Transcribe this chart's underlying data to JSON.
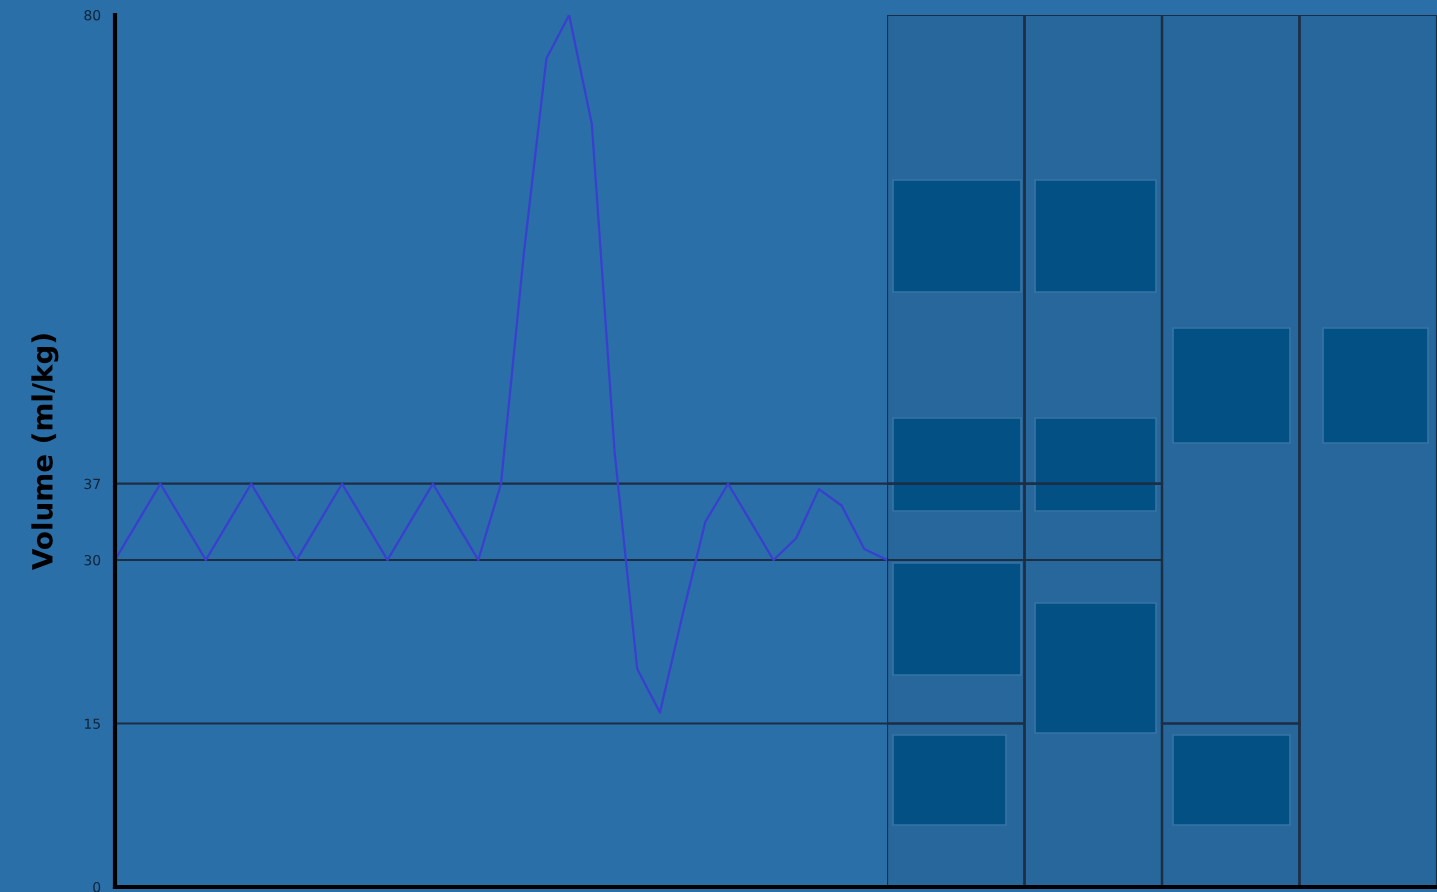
{
  "chart_data": [
    {
      "type": "line",
      "ylabel": "Volume (ml/kg)",
      "categories": [
        null,
        null,
        null,
        null,
        null,
        null,
        null,
        null,
        null,
        null,
        null,
        null,
        null,
        null,
        null,
        null,
        null,
        null,
        null,
        null,
        null,
        null,
        null,
        null,
        null,
        null,
        null,
        null,
        null,
        null,
        null,
        null,
        null,
        null,
        null
      ],
      "series": [
        {
          "color": "#3a3fd0",
          "values": [
            30,
            33.5,
            37,
            33.5,
            30,
            33.5,
            37,
            33.5,
            30,
            33.5,
            37,
            33.5,
            30,
            33.5,
            37,
            33.5,
            30,
            37,
            58,
            76,
            80,
            70,
            40,
            20,
            16,
            25,
            33.5,
            37,
            33.5,
            30,
            32,
            36.5,
            35,
            31,
            30
          ]
        }
      ],
      "ylim": [
        0,
        80
      ],
      "yticks": [
        0,
        15,
        30,
        37,
        80
      ],
      "tick_labels": "y",
      "grid": false,
      "legend": false,
      "ref_lines": [
        {
          "axis": "y",
          "value": 15,
          "color": "#1c2e44"
        },
        {
          "axis": "y",
          "value": 30,
          "color": "#1c2e44"
        },
        {
          "axis": "y",
          "value": 37,
          "color": "#1c2e44"
        }
      ]
    },
    {
      "type": "bar",
      "stacked": true,
      "categories": [
        null,
        null,
        null,
        null
      ],
      "series": [
        {
          "color": "#1c2e44",
          "values": [
            15,
            30,
            15,
            80
          ]
        },
        {
          "color": "#1c2e44",
          "values": [
            15,
            7,
            65,
            null
          ]
        },
        {
          "color": "#1c2e44",
          "values": [
            7,
            43,
            null,
            null
          ]
        },
        {
          "color": "#1c2e44",
          "values": [
            43,
            null,
            null,
            null
          ]
        }
      ],
      "ylim": [
        0,
        80
      ],
      "yticks": [
        0,
        15,
        30,
        37,
        80
      ],
      "tick_labels": false,
      "grid": false,
      "legend": false
    }
  ]
}
